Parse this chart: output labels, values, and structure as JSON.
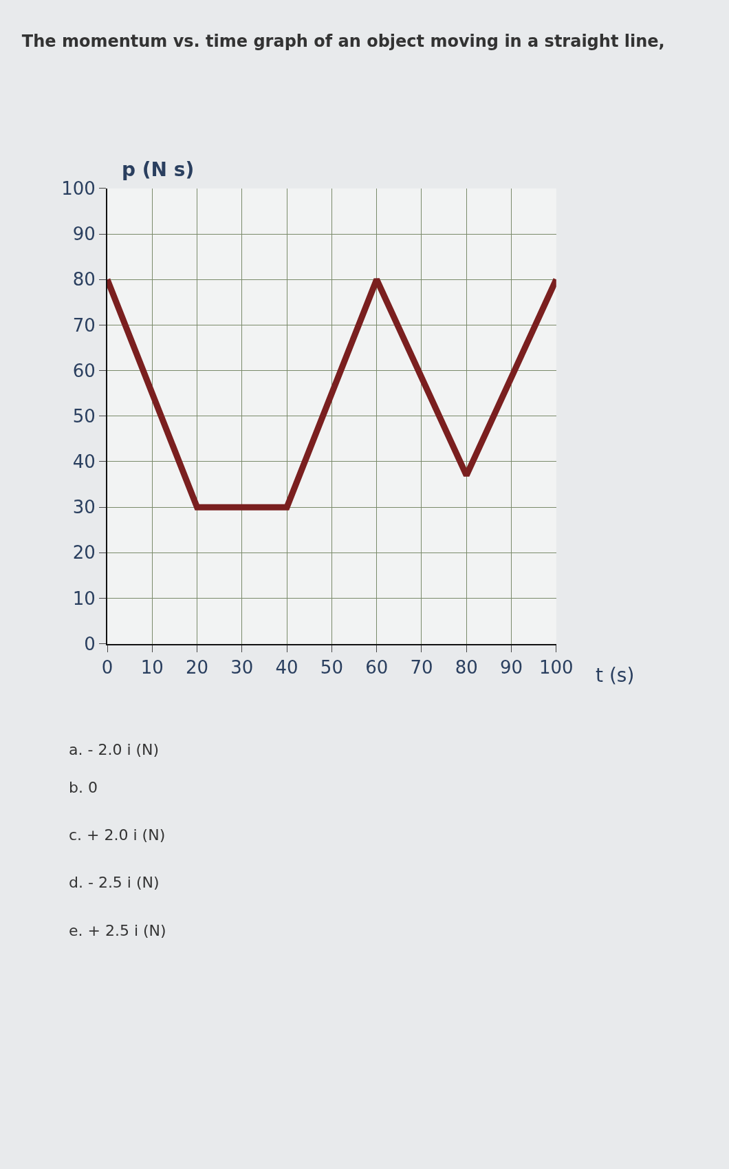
{
  "chart_data": {
    "type": "line",
    "title": "The momentum vs. time graph of an object moving in a straight line,",
    "xlabel": "t (s)",
    "ylabel": "p (N s)",
    "x": [
      0,
      20,
      40,
      60,
      80,
      100
    ],
    "series": [
      {
        "color": "#7a1f1f",
        "values": [
          80,
          30,
          30,
          80,
          37,
          80
        ]
      }
    ],
    "xlim": [
      0,
      100
    ],
    "ylim": [
      0,
      100
    ],
    "xticks": [
      0,
      10,
      20,
      30,
      40,
      50,
      60,
      70,
      80,
      90,
      100
    ],
    "yticks": [
      0,
      10,
      20,
      30,
      40,
      50,
      60,
      70,
      80,
      90,
      100
    ],
    "grid": true,
    "marker": "none",
    "line_style": "solid",
    "annotations": [
      "a. - 2.0 i (N)",
      "b. 0",
      "c. + 2.0 i (N)",
      "d. - 2.5 i (N)",
      "e. + 2.5 i (N)"
    ]
  }
}
